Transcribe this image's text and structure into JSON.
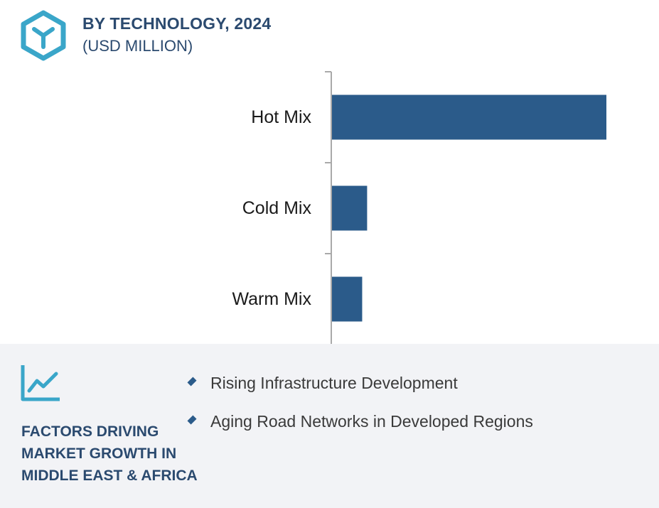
{
  "header": {
    "title": "BY TECHNOLOGY, 2024",
    "subtitle": "(USD MILLION)",
    "logo_icon": "hexagon-y-logo-icon"
  },
  "chart_data": {
    "type": "bar",
    "orientation": "horizontal",
    "categories": [
      "Hot Mix",
      "Cold Mix",
      "Warm Mix"
    ],
    "values": [
      100,
      12.8,
      11.0
    ],
    "xlim": [
      0,
      100
    ],
    "bar_color": "#2b5b8a",
    "grid": false
  },
  "factors": {
    "icon": "line-chart-growth-icon",
    "title_lines": [
      "FACTORS DRIVING",
      "MARKET GROWTH IN",
      "MIDDLE EAST & AFRICA"
    ],
    "items": [
      "Rising Infrastructure Development",
      "Aging Road Networks in Developed Regions"
    ]
  },
  "colors": {
    "accent": "#3aa6c9",
    "heading": "#2b4a6f",
    "bar": "#2b5b8a",
    "panel_bg": "#f2f3f6"
  }
}
